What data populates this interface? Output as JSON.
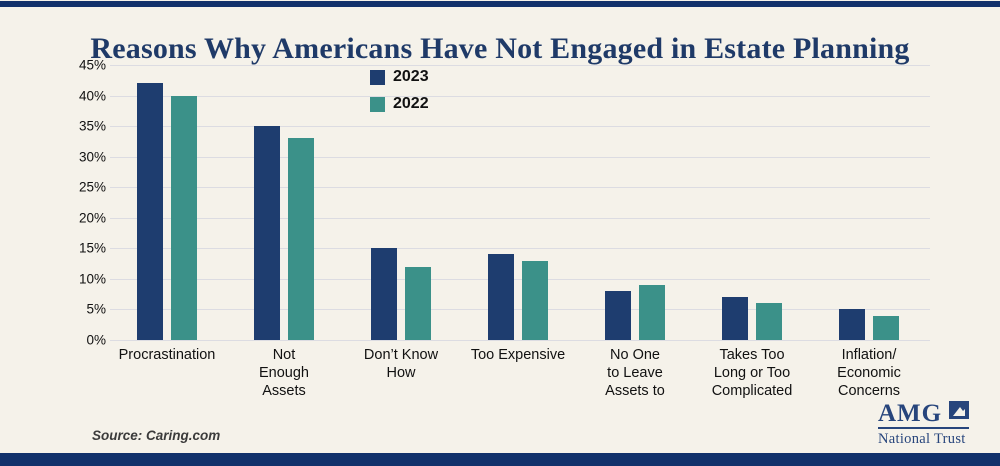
{
  "header": {
    "title": "Reasons Why Americans Have Not Engaged in Estate Planning"
  },
  "chart_data": {
    "type": "bar",
    "title": "Reasons Why Americans Have Not Engaged in Estate Planning",
    "categories": [
      "Procrastination",
      "Not\nEnough\nAssets",
      "Don’t Know\nHow",
      "Too Expensive",
      "No One\nto Leave\nAssets to",
      "Takes Too\nLong or Too\nComplicated",
      "Inflation/\nEconomic\nConcerns"
    ],
    "series": [
      {
        "name": "2023",
        "color": "#1e3d6f",
        "values": [
          42,
          35,
          15,
          14,
          8,
          7,
          5
        ]
      },
      {
        "name": "2022",
        "color": "#3b9189",
        "values": [
          40,
          33,
          12,
          13,
          9,
          6,
          4
        ]
      }
    ],
    "xlabel": "",
    "ylabel": "",
    "ylim": [
      0,
      45
    ],
    "ytick_step": 5,
    "yticks": [
      "0%",
      "5%",
      "10%",
      "15%",
      "20%",
      "25%",
      "30%",
      "35%",
      "40%",
      "45%"
    ],
    "grid": true,
    "legend_position": "top-center"
  },
  "source": {
    "label": "Source: Caring.com"
  },
  "logo": {
    "name": "AMG",
    "subtitle": "National Trust"
  },
  "colors": {
    "background": "#f5f2ea",
    "border_bars": "#12316b",
    "title_text": "#1f3a68",
    "gridline": "#dcdce2",
    "series_2023": "#1e3d6f",
    "series_2022": "#3b9189",
    "logo_navy": "#27457c"
  }
}
